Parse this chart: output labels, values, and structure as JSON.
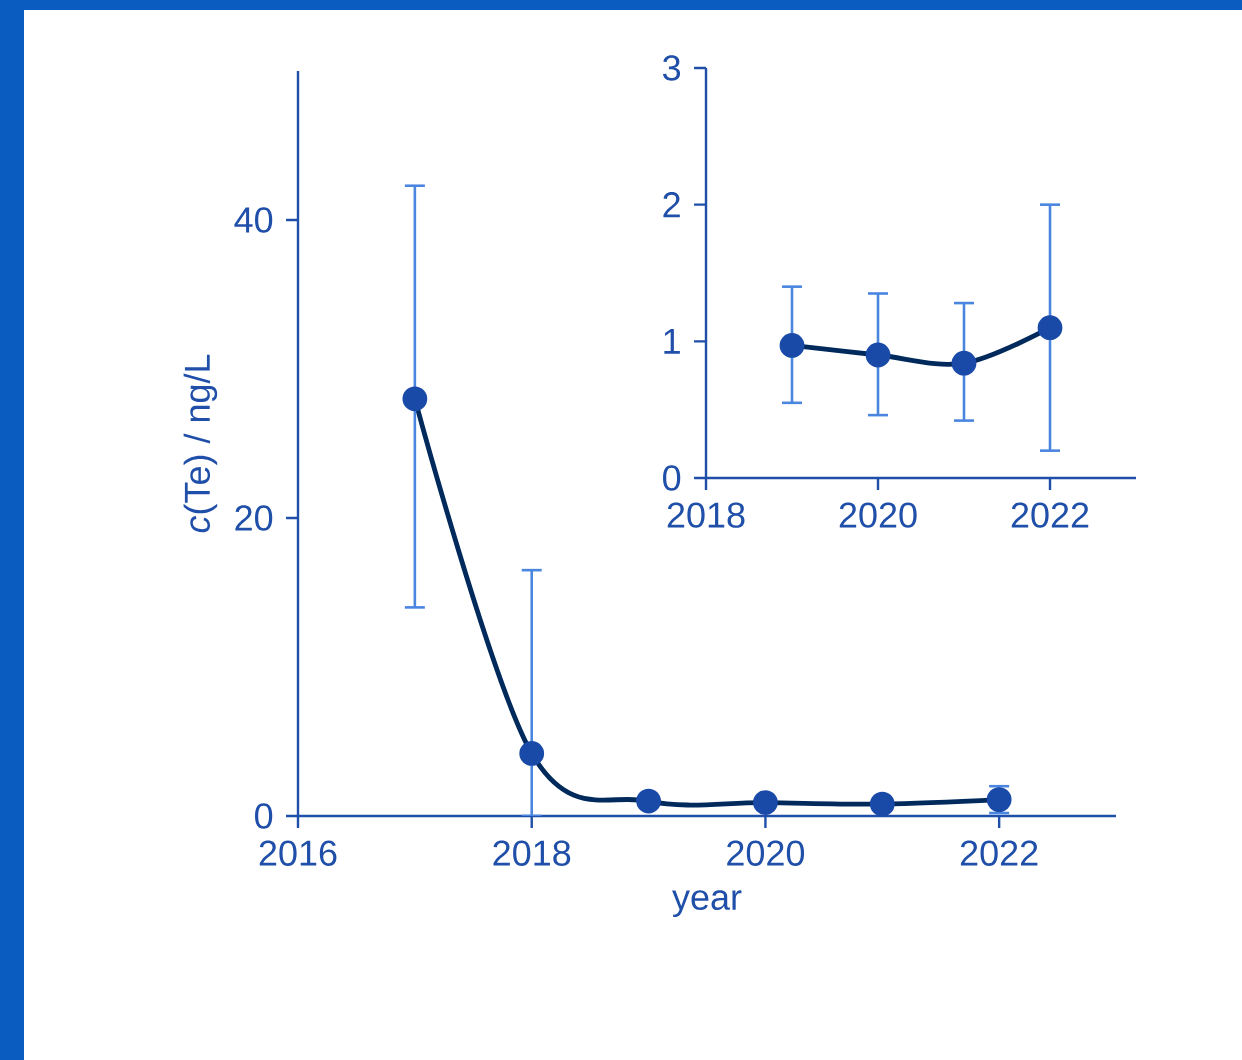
{
  "chart_data": [
    {
      "type": "line",
      "xlabel": "year",
      "ylabel": "*c*(Te) / ng/L",
      "x": [
        2017,
        2018,
        2019,
        2020,
        2021,
        2022
      ],
      "xlim": [
        2016,
        2023
      ],
      "ylim": [
        0,
        50
      ],
      "xticks": [
        2016,
        2018,
        2020,
        2022
      ],
      "yticks": [
        0,
        20,
        40
      ],
      "marker": "circle",
      "line_style": "solid",
      "series": [
        {
          "color": "#1a4aa8",
          "values": [
            28,
            4.2,
            1.0,
            0.9,
            0.8,
            1.1
          ],
          "errors": [
            [
              14,
              42.3
            ],
            [
              0,
              16.5
            ],
            null,
            null,
            null,
            [
              0.2,
              2.0
            ]
          ]
        }
      ]
    },
    {
      "type": "line",
      "x": [
        2019,
        2020,
        2021,
        2022
      ],
      "xlim": [
        2018,
        2023
      ],
      "ylim": [
        0,
        3
      ],
      "xticks": [
        2018,
        2020,
        2022
      ],
      "yticks": [
        0,
        1,
        2,
        3
      ],
      "marker": "circle",
      "line_style": "solid",
      "series": [
        {
          "color": "#1a4aa8",
          "values": [
            0.97,
            0.9,
            0.84,
            1.1
          ],
          "errors": [
            [
              0.55,
              1.4
            ],
            [
              0.46,
              1.35
            ],
            [
              0.42,
              1.28
            ],
            [
              0.2,
              2.0
            ]
          ]
        }
      ]
    }
  ]
}
